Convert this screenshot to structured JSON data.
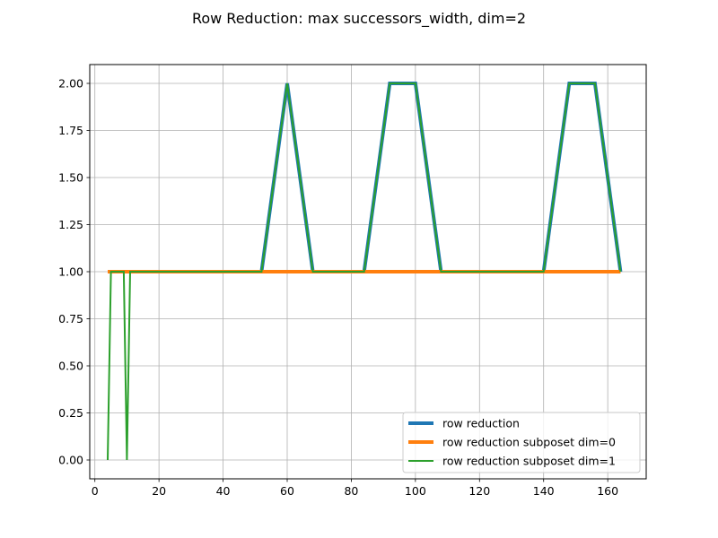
{
  "chart_data": {
    "type": "line",
    "title": "Row Reduction: max successors_width, dim=2",
    "xlabel": "",
    "ylabel": "",
    "xlim": [
      -1.6,
      172.0
    ],
    "ylim": [
      -0.1,
      2.1
    ],
    "xticks": [
      0,
      20,
      40,
      60,
      80,
      100,
      120,
      140,
      160
    ],
    "xtick_labels": [
      "0",
      "20",
      "40",
      "60",
      "80",
      "100",
      "120",
      "140",
      "160"
    ],
    "yticks": [
      0.0,
      0.25,
      0.5,
      0.75,
      1.0,
      1.25,
      1.5,
      1.75,
      2.0
    ],
    "ytick_labels": [
      "0.00",
      "0.25",
      "0.50",
      "0.75",
      "1.00",
      "1.25",
      "1.50",
      "1.75",
      "2.00"
    ],
    "grid": true,
    "legend_position": "lower-right",
    "series": [
      {
        "name": "row reduction",
        "color": "#1f77b4",
        "linewidth": "thick",
        "x": [
          4,
          52,
          60,
          68,
          84,
          92,
          100,
          108,
          140,
          148,
          156,
          164
        ],
        "y": [
          1,
          1,
          2,
          1,
          1,
          2,
          2,
          1,
          1,
          2,
          2,
          1
        ]
      },
      {
        "name": "row reduction subposet dim=0",
        "color": "#ff7f0e",
        "linewidth": "thick",
        "x": [
          4,
          164
        ],
        "y": [
          1,
          1
        ]
      },
      {
        "name": "row reduction subposet dim=1",
        "color": "#2ca02c",
        "linewidth": "normal",
        "x": [
          4,
          5,
          9,
          10,
          11,
          52,
          60,
          68,
          84,
          92,
          100,
          108,
          140,
          148,
          156,
          164
        ],
        "y": [
          0,
          1,
          1,
          0,
          1,
          1,
          2,
          1,
          1,
          2,
          2,
          1,
          1,
          2,
          2,
          1
        ]
      }
    ]
  }
}
